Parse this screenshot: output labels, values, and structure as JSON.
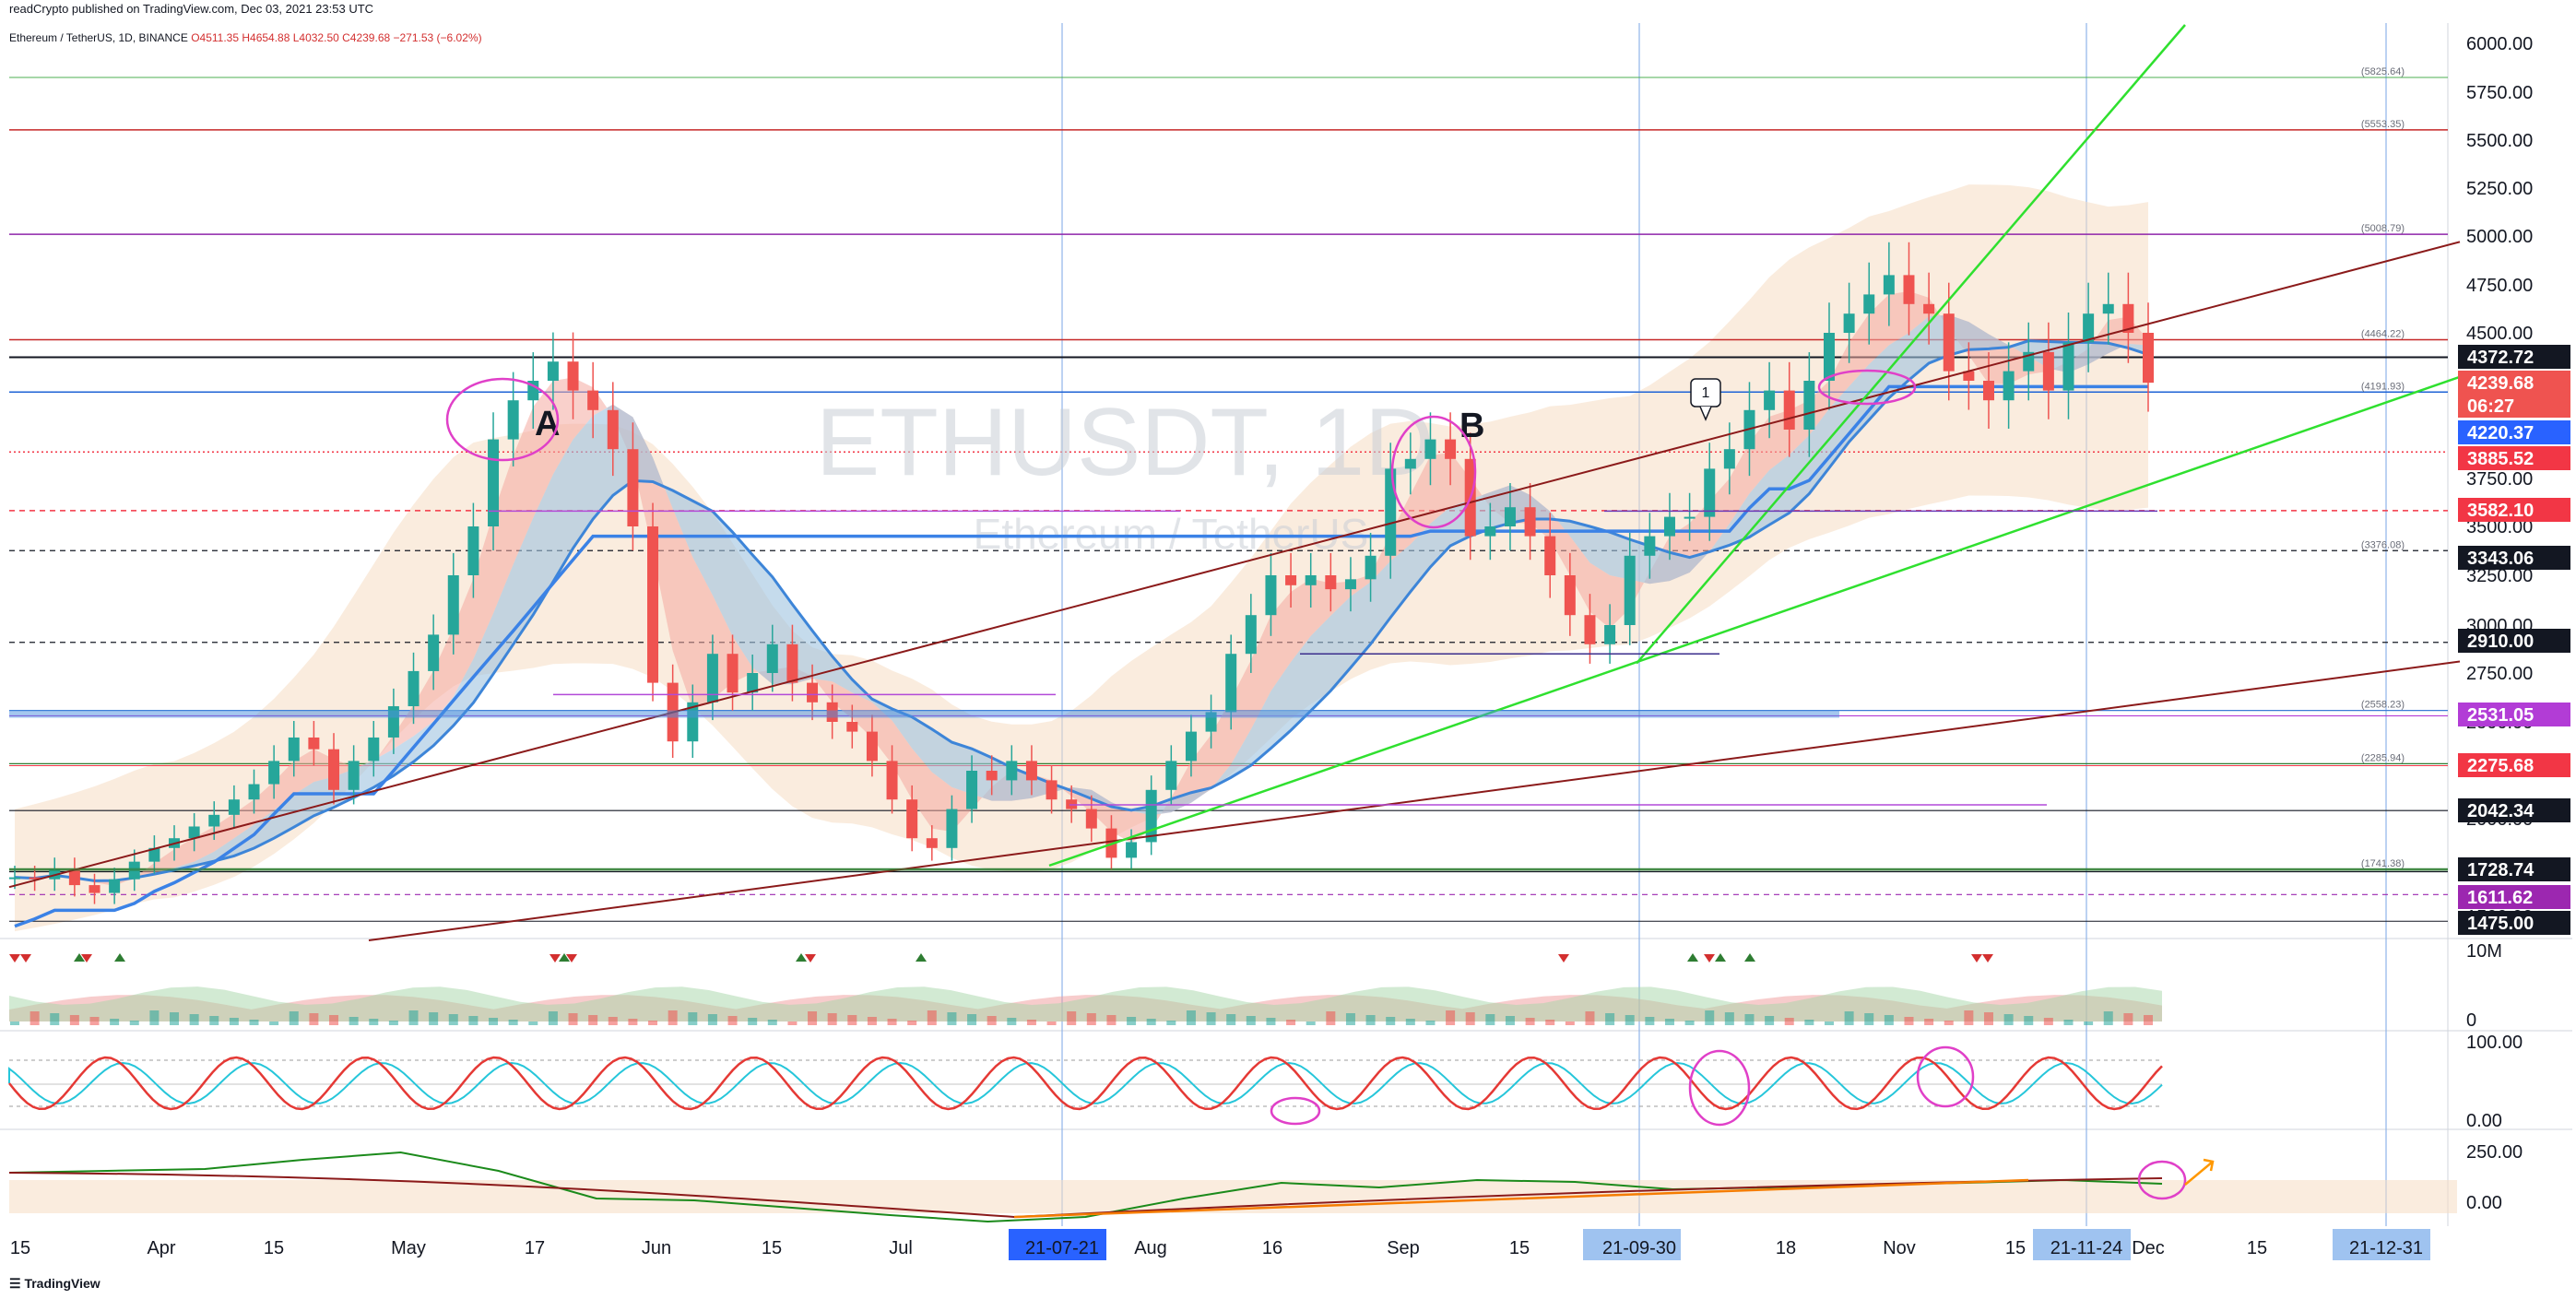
{
  "header": {
    "published": "readCrypto published on TradingView.com, Dec 03, 2021 23:53 UTC",
    "symbol": "Ethereum / TetherUS, 1D, BINANCE",
    "ohlc": "O4511.35  H4654.88  L4032.50  C4239.68  −271.53 (−6.02%)"
  },
  "watermark": {
    "ticker": "ETHUSDT, 1D",
    "name": "Ethereum / TetherUS"
  },
  "annotations": {
    "A": "A",
    "B": "B",
    "marker": "1"
  },
  "footer": {
    "brand": "TradingView"
  },
  "colors": {
    "up": "#26a69a",
    "down": "#ef5350",
    "ribbon_pink": "#f4a9a0",
    "ribbon_blue": "#9fc3e0",
    "band_fill": "#f5dcc3",
    "green_trend": "#2fe02f",
    "brown_trend": "#8b1a1a",
    "blue_step": "#3b82e6",
    "magenta": "#b24ad8",
    "circle": "#e040c8"
  },
  "chart_data": {
    "type": "candlestick",
    "symbol": "ETHUSDT",
    "timeframe": "1D",
    "ylim": [
      1400,
      6100
    ],
    "y_ticks": [
      6000,
      5750,
      5500,
      5250,
      5000,
      4750,
      4500,
      4250,
      4000,
      3750,
      3500,
      3250,
      3000,
      2750,
      2500,
      2250,
      2000,
      1750,
      1500
    ],
    "x_ticks": [
      "15",
      "Apr",
      "15",
      "May",
      "17",
      "Jun",
      "15",
      "Jul",
      "Aug",
      "16",
      "Sep",
      "15",
      "18",
      "Nov",
      "15",
      "Dec",
      "15"
    ],
    "date_tags": [
      "21-07-21",
      "21-09-30",
      "21-11-24",
      "21-12-31"
    ],
    "price_tags": [
      {
        "value": "4372.72",
        "bg": "#131722"
      },
      {
        "value": "4239.68",
        "bg": "#ef5350"
      },
      {
        "value": "06:27",
        "bg": "#ef5350"
      },
      {
        "value": "4220.37",
        "bg": "#2962ff"
      },
      {
        "value": "3885.52",
        "bg": "#f23645"
      },
      {
        "value": "3582.10",
        "bg": "#f23645"
      },
      {
        "value": "3343.06",
        "bg": "#131722"
      },
      {
        "value": "2910.00",
        "bg": "#131722"
      },
      {
        "value": "2531.05",
        "bg": "#b23cd6"
      },
      {
        "value": "2275.68",
        "bg": "#f23645"
      },
      {
        "value": "2042.34",
        "bg": "#131722"
      },
      {
        "value": "1728.74",
        "bg": "#131722"
      },
      {
        "value": "1611.62",
        "bg": "#9c27b0"
      },
      {
        "value": "1475.00",
        "bg": "#131722"
      }
    ],
    "level_labels": [
      "(5825.64)",
      "(5553.35)",
      "(5008.79)",
      "(4464.22)",
      "(4191.93)",
      "(3376.08)",
      "(2558.23)",
      "(2285.94)",
      "(1741.38)"
    ],
    "levels": [
      5825.64,
      5553.35,
      5008.79,
      4464.22,
      4372.72,
      4191.93,
      3885.52,
      3582.1,
      3376.08,
      2910.0,
      2558.23,
      2531.05,
      2285.94,
      2042.34,
      1741.38,
      1728.74,
      1611.62,
      1475.0
    ],
    "close_path": [
      1700,
      1690,
      1740,
      1660,
      1620,
      1690,
      1780,
      1850,
      1900,
      1960,
      2020,
      2100,
      2180,
      2300,
      2420,
      2360,
      2150,
      2300,
      2420,
      2580,
      2760,
      2950,
      3250,
      3500,
      3950,
      4150,
      4250,
      4350,
      4200,
      4100,
      3900,
      3500,
      2700,
      2400,
      2600,
      2850,
      2650,
      2750,
      2900,
      2700,
      2600,
      2500,
      2450,
      2300,
      2100,
      1900,
      1850,
      2050,
      2250,
      2200,
      2300,
      2200,
      2100,
      2050,
      1950,
      1800,
      1880,
      2150,
      2300,
      2450,
      2550,
      2850,
      3050,
      3250,
      3200,
      3250,
      3180,
      3230,
      3350,
      3800,
      3850,
      3950,
      3850,
      3450,
      3500,
      3600,
      3450,
      3250,
      3050,
      2900,
      3000,
      3350,
      3450,
      3550,
      3550,
      3800,
      3900,
      4100,
      4200,
      4000,
      4250,
      4500,
      4600,
      4700,
      4800,
      4650,
      4600,
      4300,
      4250,
      4150,
      4300,
      4400,
      4200,
      4450,
      4600,
      4650,
      4500,
      4240
    ],
    "volume_axis": [
      "10M",
      "0"
    ],
    "osc1_axis": [
      "100.00",
      "0.00"
    ],
    "osc2_axis": [
      "250.00",
      "0.00"
    ]
  }
}
